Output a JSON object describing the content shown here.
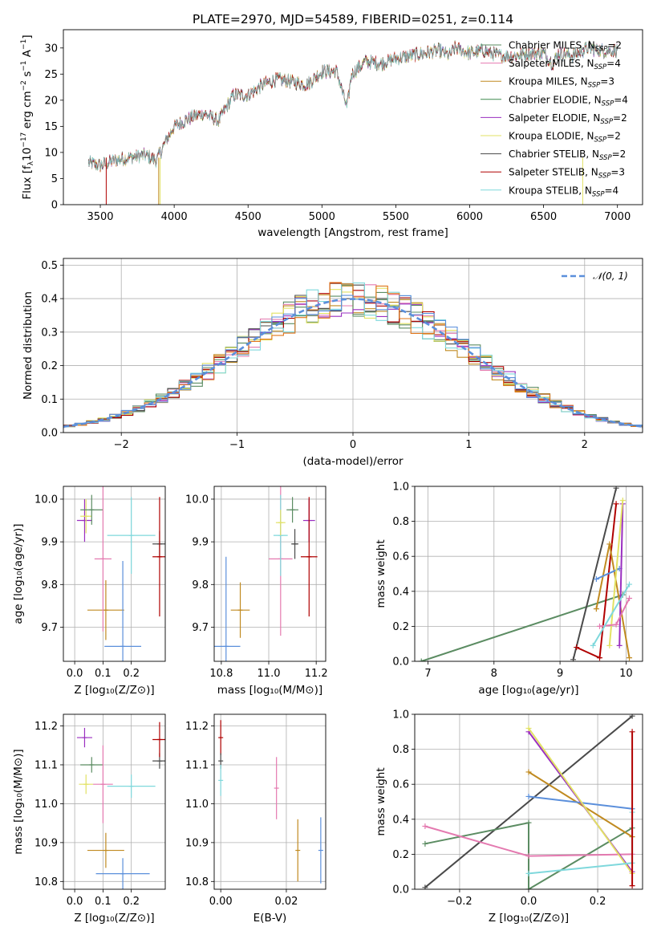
{
  "figure": {
    "title": "PLATE=2970, MJD=54589, FIBERID=0251, z=0.114"
  },
  "colors": [
    "#5b8c62",
    "#e47ab0",
    "#c08a20",
    "#5b8c62",
    "#9a2fc0",
    "#e2e264",
    "#4a4a4a",
    "#b00000",
    "#7fd8dc"
  ],
  "chart_data": [
    {
      "id": "spectrum",
      "type": "line",
      "xlabel": "wavelength [Angstrom, rest frame]",
      "ylabel": "Flux [f_λ 10^-17 erg cm^-2 s^-1 A^-1]",
      "xlim": [
        3250,
        7170
      ],
      "ylim": [
        0,
        33.5
      ],
      "xticks": [
        3500,
        4000,
        4500,
        5000,
        5500,
        6000,
        6500,
        7000
      ],
      "yticks": [
        0,
        5,
        10,
        15,
        20,
        25,
        30
      ],
      "legend_position": "upper-right",
      "series": [
        {
          "name": "Chabrier MILES, N_SSP=2",
          "color": "#5b8c62"
        },
        {
          "name": "Salpeter MILES, N_SSP=4",
          "color": "#e47ab0"
        },
        {
          "name": "Kroupa MILES, N_SSP=3",
          "color": "#c08a20"
        },
        {
          "name": "Chabrier ELODIE, N_SSP=4",
          "color": "#3e8a4e"
        },
        {
          "name": "Salpeter ELODIE, N_SSP=2",
          "color": "#9a2fc0"
        },
        {
          "name": "Kroupa ELODIE, N_SSP=2",
          "color": "#e2e264"
        },
        {
          "name": "Chabrier STELIB, N_SSP=2",
          "color": "#4a4a4a"
        },
        {
          "name": "Salpeter STELIB, N_SSP=3",
          "color": "#b00000"
        },
        {
          "name": "Kroupa STELIB, N_SSP=4",
          "color": "#7fd8dc"
        }
      ],
      "continuum": [
        [
          3420,
          8
        ],
        [
          3500,
          7.5
        ],
        [
          3600,
          8.5
        ],
        [
          3700,
          9
        ],
        [
          3800,
          9.5
        ],
        [
          3880,
          8.5
        ],
        [
          3950,
          12.5
        ],
        [
          4000,
          15
        ],
        [
          4100,
          16.5
        ],
        [
          4200,
          17.5
        ],
        [
          4300,
          16
        ],
        [
          4400,
          21
        ],
        [
          4500,
          21
        ],
        [
          4600,
          23
        ],
        [
          4700,
          24
        ],
        [
          4800,
          23.5
        ],
        [
          4900,
          23
        ],
        [
          5000,
          25.5
        ],
        [
          5100,
          25.5
        ],
        [
          5170,
          18.5
        ],
        [
          5200,
          25
        ],
        [
          5300,
          27.5
        ],
        [
          5400,
          27
        ],
        [
          5500,
          28
        ],
        [
          5600,
          28.5
        ],
        [
          5700,
          29
        ],
        [
          5800,
          29.5
        ],
        [
          5860,
          28.5
        ],
        [
          5900,
          30
        ],
        [
          6000,
          29
        ],
        [
          6100,
          29.5
        ],
        [
          6200,
          28.5
        ],
        [
          6300,
          28.5
        ],
        [
          6400,
          29
        ],
        [
          6500,
          29
        ],
        [
          6563,
          27
        ],
        [
          6600,
          29
        ],
        [
          6700,
          28.5
        ],
        [
          6800,
          30
        ],
        [
          6900,
          29.5
        ],
        [
          7000,
          29.5
        ]
      ]
    },
    {
      "id": "residuals",
      "type": "line",
      "xlabel": "(data-model)/error",
      "ylabel": "Normed distribution",
      "xlim": [
        -2.5,
        2.5
      ],
      "ylim": [
        0,
        0.52
      ],
      "xticks": [
        -2,
        -1,
        0,
        1,
        2
      ],
      "yticks": [
        0.0,
        0.1,
        0.2,
        0.3,
        0.4,
        0.5
      ],
      "legend": "N(0,1)",
      "legend_position": "upper-right",
      "gaussian_color": "#5b8fdb"
    },
    {
      "id": "age_vs_Z",
      "type": "scatter",
      "xlabel": "Z [log10(Z/Z☉)]",
      "ylabel": "age [log10(age/yr)]",
      "xlim": [
        -0.04,
        0.32
      ],
      "ylim": [
        9.62,
        10.03
      ],
      "xticks": [
        0.0,
        0.1,
        0.2
      ],
      "yticks": [
        9.7,
        9.8,
        9.9,
        10.0
      ],
      "points": [
        {
          "x": 0.035,
          "y": 9.95,
          "xerr": 0.027,
          "yerr": 0.05,
          "color": "#9a2fc0"
        },
        {
          "x": 0.04,
          "y": 9.96,
          "xerr": 0.02,
          "yerr": 0.04,
          "color": "#e2e264"
        },
        {
          "x": 0.06,
          "y": 9.975,
          "xerr": 0.04,
          "yerr": 0.035,
          "color": "#5b8c62"
        },
        {
          "x": 0.11,
          "y": 9.74,
          "xerr": 0.065,
          "yerr": 0.07,
          "color": "#c08a20"
        },
        {
          "x": 0.17,
          "y": 9.655,
          "xerr": 0.065,
          "yerr": 0.2,
          "color": "#5b8fdb"
        },
        {
          "x": 0.2,
          "y": 9.915,
          "xerr": 0.085,
          "yerr": 0.09,
          "color": "#7fd8dc"
        },
        {
          "x": 0.1,
          "y": 9.86,
          "xerr": 0.03,
          "yerr": 0.17,
          "color": "#e47ab0"
        },
        {
          "x": 0.3,
          "y": 9.895,
          "xerr": 0.025,
          "yerr": 0.03,
          "color": "#4a4a4a"
        },
        {
          "x": 0.3,
          "y": 9.865,
          "xerr": 0.025,
          "yerr": 0.14,
          "color": "#b00000"
        }
      ]
    },
    {
      "id": "age_vs_mass",
      "type": "scatter",
      "xlabel": "mass [log10(M/M☉)]",
      "ylabel": "",
      "xlim": [
        10.77,
        11.24
      ],
      "ylim": [
        9.62,
        10.03
      ],
      "xticks": [
        10.8,
        11.0,
        11.2
      ],
      "yticks": [
        9.7,
        9.8,
        9.9,
        10.0
      ],
      "points": [
        {
          "x": 10.82,
          "y": 9.655,
          "xerr": 0.06,
          "yerr": 0.21,
          "color": "#5b8fdb"
        },
        {
          "x": 10.88,
          "y": 9.74,
          "xerr": 0.04,
          "yerr": 0.065,
          "color": "#c08a20"
        },
        {
          "x": 11.05,
          "y": 9.86,
          "xerr": 0.05,
          "yerr": 0.18,
          "color": "#e47ab0"
        },
        {
          "x": 11.05,
          "y": 9.915,
          "xerr": 0.03,
          "yerr": 0.095,
          "color": "#7fd8dc"
        },
        {
          "x": 11.05,
          "y": 9.945,
          "xerr": 0.02,
          "yerr": 0.03,
          "color": "#e2e264"
        },
        {
          "x": 11.1,
          "y": 9.975,
          "xerr": 0.025,
          "yerr": 0.03,
          "color": "#5b8c62"
        },
        {
          "x": 11.11,
          "y": 9.895,
          "xerr": 0.015,
          "yerr": 0.035,
          "color": "#4a4a4a"
        },
        {
          "x": 11.17,
          "y": 9.95,
          "xerr": 0.025,
          "yerr": 0.05,
          "color": "#9a2fc0"
        },
        {
          "x": 11.17,
          "y": 9.865,
          "xerr": 0.035,
          "yerr": 0.14,
          "color": "#b00000"
        }
      ]
    },
    {
      "id": "weight_vs_age",
      "type": "line",
      "xlabel": "age [log10(age/yr)]",
      "ylabel": "mass weight",
      "xlim": [
        6.8,
        10.25
      ],
      "ylim": [
        0,
        1
      ],
      "xticks": [
        7,
        8,
        9,
        10
      ],
      "yticks": [
        0.0,
        0.2,
        0.4,
        0.6,
        0.8,
        1.0
      ],
      "series": [
        {
          "color": "#5b8c62",
          "points": [
            [
              6.9,
              0.0
            ],
            [
              9.95,
              0.38
            ]
          ]
        },
        {
          "color": "#4a4a4a",
          "points": [
            [
              9.2,
              0.01
            ],
            [
              9.85,
              0.99
            ]
          ]
        },
        {
          "color": "#b00000",
          "points": [
            [
              9.25,
              0.08
            ],
            [
              9.6,
              0.02
            ],
            [
              9.85,
              0.9
            ]
          ]
        },
        {
          "color": "#c08a20",
          "points": [
            [
              9.55,
              0.3
            ],
            [
              9.75,
              0.67
            ],
            [
              10.05,
              0.02
            ]
          ]
        },
        {
          "color": "#5b8fdb",
          "points": [
            [
              9.55,
              0.47
            ],
            [
              9.9,
              0.53
            ]
          ]
        },
        {
          "color": "#9a2fc0",
          "points": [
            [
              9.9,
              0.09
            ],
            [
              9.95,
              0.9
            ]
          ]
        },
        {
          "color": "#e2e264",
          "points": [
            [
              9.75,
              0.09
            ],
            [
              9.95,
              0.92
            ]
          ]
        },
        {
          "color": "#e47ab0",
          "points": [
            [
              9.6,
              0.2
            ],
            [
              9.85,
              0.21
            ],
            [
              10.05,
              0.36
            ]
          ]
        },
        {
          "color": "#7fd8dc",
          "points": [
            [
              9.5,
              0.09
            ],
            [
              10.05,
              0.44
            ]
          ]
        }
      ]
    },
    {
      "id": "mass_vs_Z",
      "type": "scatter",
      "xlabel": "Z [log10(Z/Z☉)]",
      "ylabel": "mass [log10(M/M☉)]",
      "xlim": [
        -0.04,
        0.32
      ],
      "ylim": [
        10.78,
        11.23
      ],
      "xticks": [
        0.0,
        0.1,
        0.2
      ],
      "yticks": [
        10.8,
        10.9,
        11.0,
        11.1,
        11.2
      ],
      "points": [
        {
          "x": 0.035,
          "y": 11.17,
          "xerr": 0.027,
          "yerr": 0.025,
          "color": "#9a2fc0"
        },
        {
          "x": 0.04,
          "y": 11.05,
          "xerr": 0.025,
          "yerr": 0.025,
          "color": "#e2e264"
        },
        {
          "x": 0.06,
          "y": 11.1,
          "xerr": 0.04,
          "yerr": 0.02,
          "color": "#5b8c62"
        },
        {
          "x": 0.11,
          "y": 10.88,
          "xerr": 0.065,
          "yerr": 0.045,
          "color": "#c08a20"
        },
        {
          "x": 0.17,
          "y": 10.82,
          "xerr": 0.095,
          "yerr": 0.04,
          "color": "#5b8fdb"
        },
        {
          "x": 0.2,
          "y": 11.045,
          "xerr": 0.085,
          "yerr": 0.03,
          "color": "#7fd8dc"
        },
        {
          "x": 0.1,
          "y": 11.05,
          "xerr": 0.035,
          "yerr": 0.1,
          "color": "#e47ab0"
        },
        {
          "x": 0.3,
          "y": 11.11,
          "xerr": 0.025,
          "yerr": 0.02,
          "color": "#4a4a4a"
        },
        {
          "x": 0.3,
          "y": 11.165,
          "xerr": 0.025,
          "yerr": 0.045,
          "color": "#b00000"
        }
      ]
    },
    {
      "id": "mass_vs_ebv",
      "type": "scatter",
      "xlabel": "E(B-V)",
      "ylabel": "",
      "xlim": [
        -0.002,
        0.032
      ],
      "ylim": [
        10.78,
        11.23
      ],
      "xticks": [
        0.0,
        0.02
      ],
      "yticks": [
        10.8,
        10.9,
        11.0,
        11.1,
        11.2
      ],
      "points": [
        {
          "x": 0.0,
          "y": 11.17,
          "yerr": 0.045,
          "color": "#b00000"
        },
        {
          "x": 0.0,
          "y": 11.11,
          "yerr": 0.02,
          "color": "#4a4a4a"
        },
        {
          "x": 0.0,
          "y": 11.06,
          "yerr": 0.04,
          "color": "#7fd8dc"
        },
        {
          "x": 0.017,
          "y": 11.04,
          "yerr": 0.08,
          "color": "#e47ab0"
        },
        {
          "x": 0.0235,
          "y": 10.88,
          "yerr": 0.08,
          "color": "#c08a20"
        },
        {
          "x": 0.0305,
          "y": 10.88,
          "yerr": 0.085,
          "color": "#5b8fdb"
        }
      ]
    },
    {
      "id": "weight_vs_Z",
      "type": "line",
      "xlabel": "Z [log10(Z/Z☉)]",
      "ylabel": "mass weight",
      "xlim": [
        -0.33,
        0.33
      ],
      "ylim": [
        0,
        1
      ],
      "xticks": [
        -0.2,
        0.0,
        0.2
      ],
      "yticks": [
        0.0,
        0.2,
        0.4,
        0.6,
        0.8,
        1.0
      ],
      "series": [
        {
          "color": "#4a4a4a",
          "points": [
            [
              -0.3,
              0.01
            ],
            [
              0.3,
              0.99
            ]
          ]
        },
        {
          "color": "#5b8c62",
          "points": [
            [
              -0.3,
              0.26
            ],
            [
              0.0,
              0.38
            ],
            [
              0.0,
              0.0
            ],
            [
              0.3,
              0.35
            ]
          ]
        },
        {
          "color": "#e47ab0",
          "points": [
            [
              -0.3,
              0.36
            ],
            [
              0.0,
              0.19
            ],
            [
              0.3,
              0.2
            ]
          ]
        },
        {
          "color": "#c08a20",
          "points": [
            [
              0.0,
              0.67
            ],
            [
              0.3,
              0.3
            ]
          ]
        },
        {
          "color": "#5b8fdb",
          "points": [
            [
              0.0,
              0.53
            ],
            [
              0.3,
              0.46
            ]
          ]
        },
        {
          "color": "#9a2fc0",
          "points": [
            [
              0.0,
              0.9
            ],
            [
              0.3,
              0.1
            ]
          ]
        },
        {
          "color": "#e2e264",
          "points": [
            [
              0.0,
              0.92
            ],
            [
              0.3,
              0.09
            ]
          ]
        },
        {
          "color": "#7fd8dc",
          "points": [
            [
              0.0,
              0.09
            ],
            [
              0.3,
              0.15
            ],
            [
              0.3,
              0.44
            ]
          ]
        },
        {
          "color": "#b00000",
          "points": [
            [
              0.3,
              0.9
            ],
            [
              0.3,
              0.02
            ]
          ]
        }
      ]
    }
  ]
}
